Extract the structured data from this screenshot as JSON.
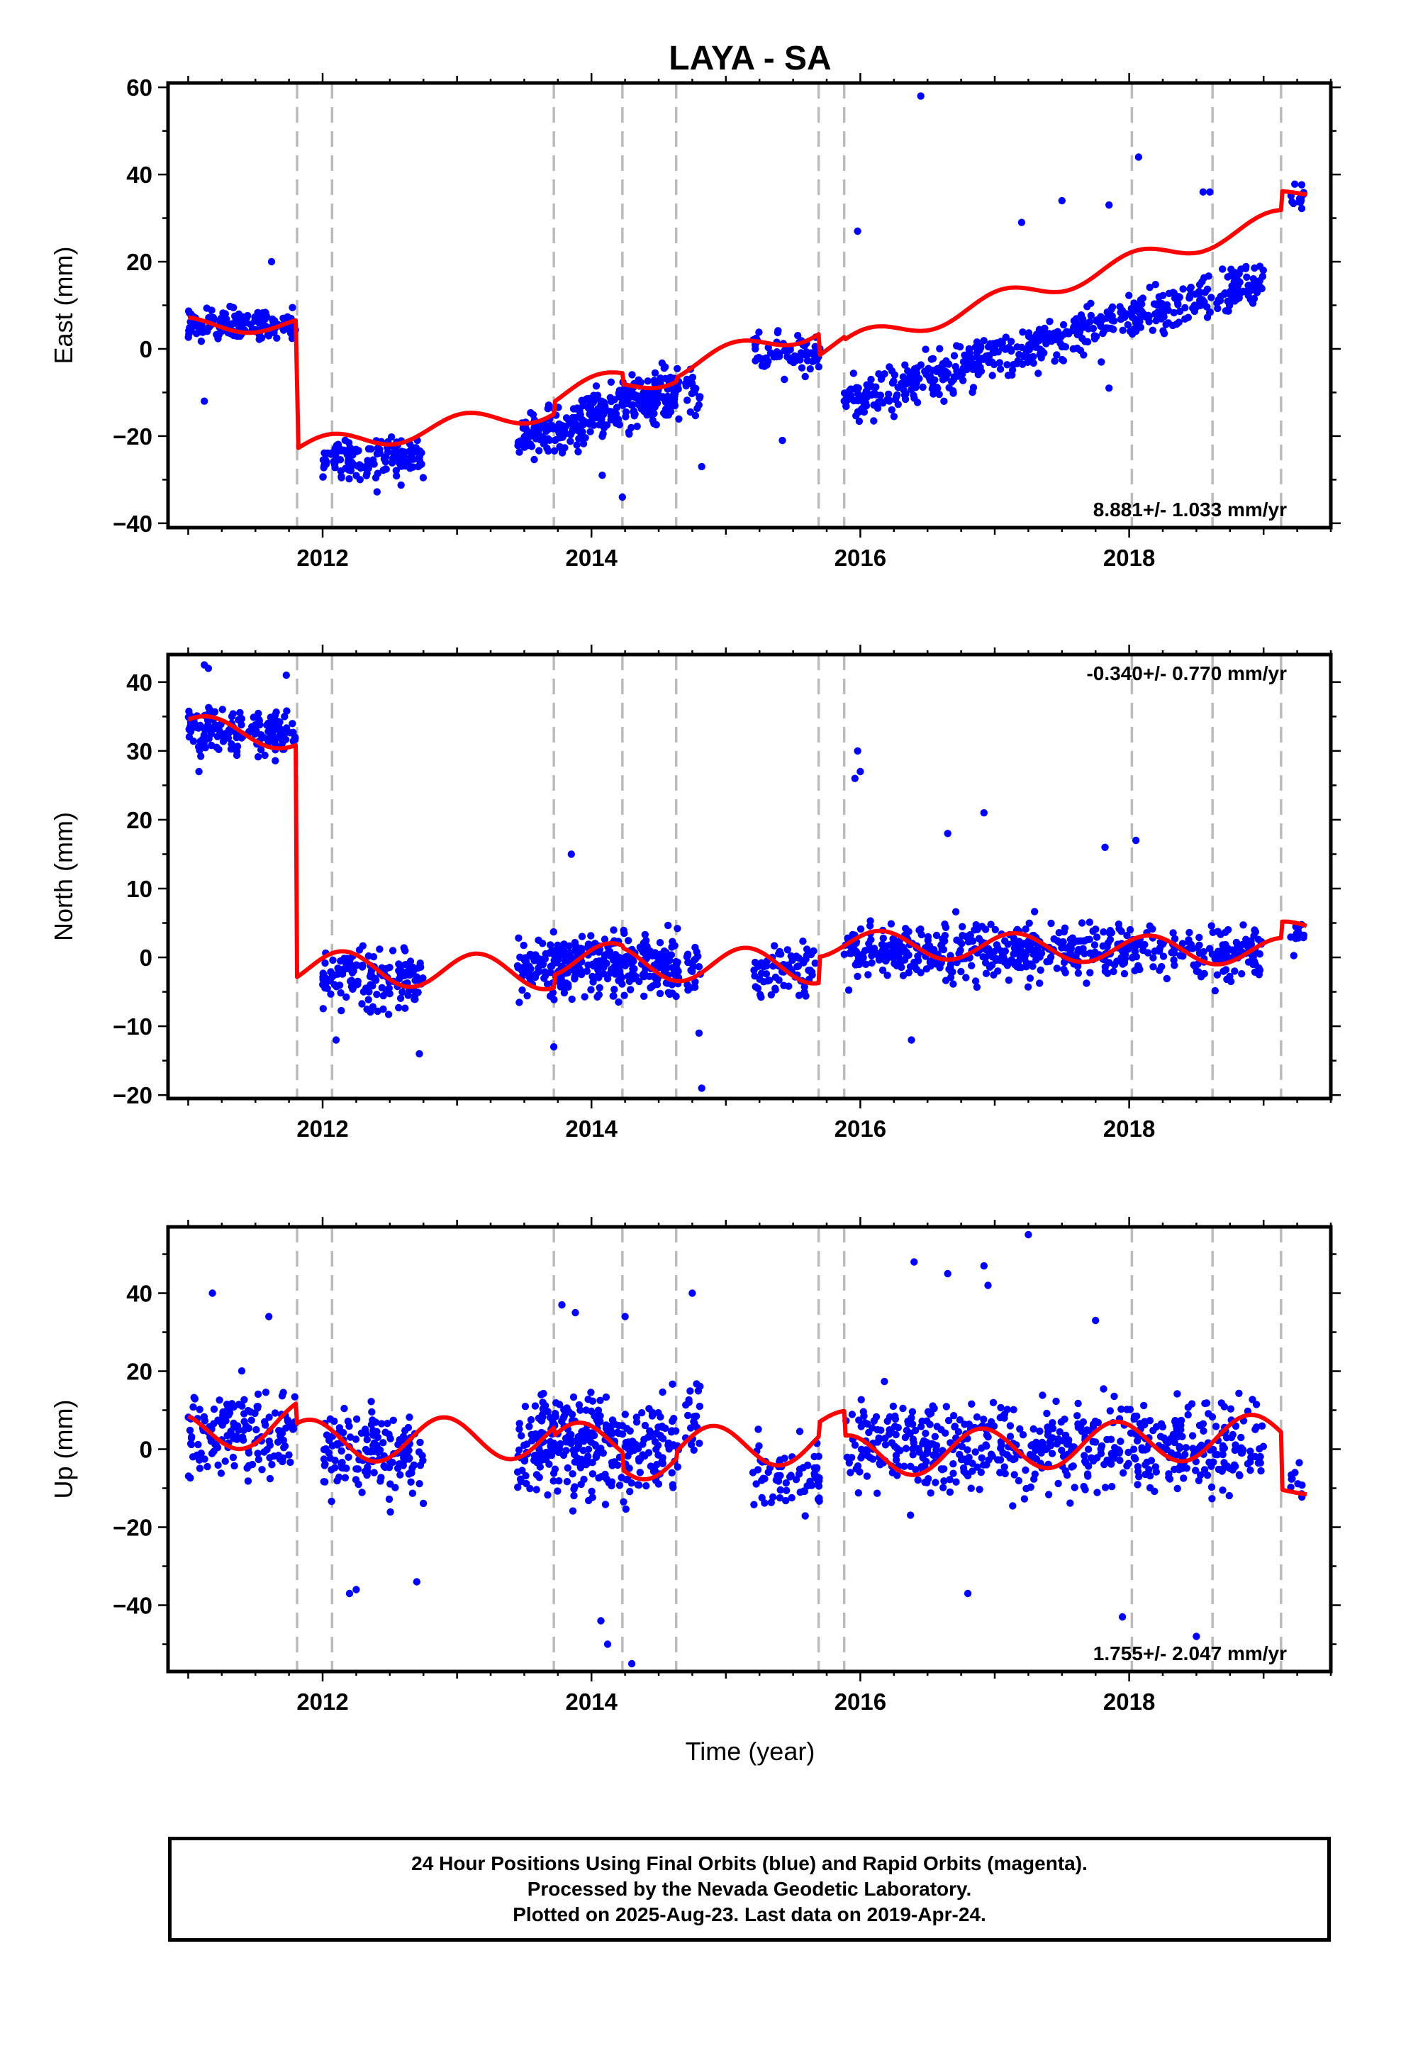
{
  "title": "LAYA - SA",
  "xlabel": "Time (year)",
  "footer": {
    "line1": "24 Hour Positions Using Final Orbits (blue) and Rapid Orbits (magenta).",
    "line2": "Processed by the Nevada Geodetic Laboratory.",
    "line3": "Plotted on 2025-Aug-23. Last data on 2019-Apr-24."
  },
  "colors": {
    "points": "#0000ff",
    "model": "#ff0000",
    "steps": "#bbbbbb"
  },
  "chart_data": [
    {
      "type": "scatter",
      "panel": "east",
      "ylabel": "East (mm)",
      "rate_text": "8.881+/- 1.033 mm/yr",
      "rate_position": "bottom-right",
      "xlim": [
        2010.85,
        2019.5
      ],
      "ylim": [
        -41,
        61
      ],
      "xticks": [
        2012,
        2014,
        2016,
        2018
      ],
      "yticks": [
        -40,
        -20,
        0,
        20,
        40,
        60
      ],
      "grid": false,
      "step_lines": [
        2011.81,
        2012.07,
        2013.72,
        2014.23,
        2014.63,
        2015.69,
        2015.88,
        2018.02,
        2018.62,
        2019.13
      ],
      "segments": [
        {
          "x": [
            2011.0,
            2011.8
          ],
          "offset": 5.5,
          "trend": 0,
          "amp": 1.8,
          "phase": 0.3
        },
        {
          "x": [
            2011.82,
            2013.72
          ],
          "offset": -23,
          "trend": 4.8,
          "amp": 2.3,
          "phase": 0.2
        },
        {
          "x": [
            2013.73,
            2014.23
          ],
          "offset": -11,
          "trend": 8.9,
          "amp": 2.3,
          "phase": 0.2
        },
        {
          "x": [
            2014.24,
            2014.63
          ],
          "offset": -9,
          "trend": 8.9,
          "amp": 2.3,
          "phase": 0.2
        },
        {
          "x": [
            2014.64,
            2015.69
          ],
          "offset": -4.5,
          "trend": 8.9,
          "amp": 2.3,
          "phase": 0.2
        },
        {
          "x": [
            2015.7,
            2015.88
          ],
          "offset": 0,
          "trend": 8.9,
          "amp": 2.3,
          "phase": 0.2
        },
        {
          "x": [
            2015.89,
            2019.13
          ],
          "offset": 1,
          "trend": 8.9,
          "amp": 2.3,
          "phase": 0.2
        },
        {
          "x": [
            2019.14,
            2019.32
          ],
          "offset": 35.5,
          "trend": 0,
          "amp": 0.8,
          "phase": 0.2
        }
      ],
      "point_groups": [
        {
          "x": [
            2011.0,
            2011.8
          ],
          "center": 5.5,
          "spread": 3.2,
          "trend": 0,
          "n": 150
        },
        {
          "x": [
            2012.0,
            2012.75
          ],
          "center": -25,
          "spread": 4.5,
          "trend": 0,
          "n": 150
        },
        {
          "x": [
            2013.45,
            2014.65
          ],
          "center": -15,
          "spread": 5,
          "trend": 8.9,
          "n": 330
        },
        {
          "x": [
            2014.7,
            2014.82
          ],
          "center": -10,
          "spread": 5,
          "trend": 0,
          "n": 20
        },
        {
          "x": [
            2015.2,
            2015.7
          ],
          "center": -1,
          "spread": 4.5,
          "trend": 0,
          "n": 70
        },
        {
          "x": [
            2015.88,
            2019.0
          ],
          "center": 2,
          "spread": 4.5,
          "trend": 8.9,
          "n": 560
        },
        {
          "x": [
            2019.2,
            2019.3
          ],
          "center": 35,
          "spread": 3,
          "trend": 0,
          "n": 15
        }
      ],
      "outliers": [
        {
          "x": 2016.45,
          "y": 58
        },
        {
          "x": 2015.98,
          "y": 27
        },
        {
          "x": 2018.07,
          "y": 44
        },
        {
          "x": 2011.12,
          "y": -12
        },
        {
          "x": 2017.5,
          "y": 34
        },
        {
          "x": 2014.82,
          "y": -27
        },
        {
          "x": 2014.08,
          "y": -29
        },
        {
          "x": 2014.23,
          "y": -34
        },
        {
          "x": 2015.42,
          "y": -21
        },
        {
          "x": 2017.85,
          "y": -9
        },
        {
          "x": 2011.62,
          "y": 20
        },
        {
          "x": 2018.6,
          "y": 36
        },
        {
          "x": 2018.55,
          "y": 36
        },
        {
          "x": 2017.2,
          "y": 29
        },
        {
          "x": 2017.85,
          "y": 33
        }
      ]
    },
    {
      "type": "scatter",
      "panel": "north",
      "ylabel": "North (mm)",
      "rate_text": "-0.340+/- 0.770 mm/yr",
      "rate_position": "top-right",
      "xlim": [
        2010.85,
        2019.5
      ],
      "ylim": [
        -20.5,
        44
      ],
      "xticks": [
        2012,
        2014,
        2016,
        2018
      ],
      "yticks": [
        -20,
        -10,
        0,
        10,
        20,
        30,
        40
      ],
      "grid": false,
      "step_lines": [
        2011.81,
        2012.07,
        2013.72,
        2014.23,
        2014.63,
        2015.69,
        2015.88,
        2018.02,
        2018.62,
        2019.13
      ],
      "segments": [
        {
          "x": [
            2011.0,
            2011.8
          ],
          "offset": 33.5,
          "trend": -2,
          "amp": 1.8,
          "phase": 0.1
        },
        {
          "x": [
            2011.81,
            2013.72
          ],
          "offset": -1.5,
          "trend": -0.34,
          "amp": 2.5,
          "phase": 0.1
        },
        {
          "x": [
            2013.73,
            2014.23
          ],
          "offset": -0.3,
          "trend": -0.34,
          "amp": 2.5,
          "phase": 0.1
        },
        {
          "x": [
            2014.24,
            2015.69
          ],
          "offset": -0.8,
          "trend": -0.34,
          "amp": 2.5,
          "phase": 0.1
        },
        {
          "x": [
            2015.7,
            2019.13
          ],
          "offset": 2,
          "trend": -0.34,
          "amp": 2.0,
          "phase": 0.1
        },
        {
          "x": [
            2019.14,
            2019.32
          ],
          "offset": 4,
          "trend": 0,
          "amp": 1.2,
          "phase": 0.1
        }
      ],
      "point_groups": [
        {
          "x": [
            2011.0,
            2011.8
          ],
          "center": 33,
          "spread": 3,
          "trend": 0,
          "n": 150
        },
        {
          "x": [
            2012.0,
            2012.75
          ],
          "center": -3,
          "spread": 3.8,
          "trend": 0,
          "n": 150
        },
        {
          "x": [
            2013.45,
            2014.65
          ],
          "center": -1,
          "spread": 3.8,
          "trend": 0,
          "n": 330
        },
        {
          "x": [
            2014.7,
            2014.82
          ],
          "center": -2,
          "spread": 3.5,
          "trend": 0,
          "n": 20
        },
        {
          "x": [
            2015.2,
            2015.7
          ],
          "center": -2,
          "spread": 3,
          "trend": 0,
          "n": 70
        },
        {
          "x": [
            2015.88,
            2019.0
          ],
          "center": 1,
          "spread": 3.5,
          "trend": 0,
          "n": 560
        },
        {
          "x": [
            2019.2,
            2019.3
          ],
          "center": 3,
          "spread": 2,
          "trend": 0,
          "n": 12
        }
      ],
      "outliers": [
        {
          "x": 2015.98,
          "y": 30
        },
        {
          "x": 2015.96,
          "y": 26
        },
        {
          "x": 2016.0,
          "y": 27
        },
        {
          "x": 2016.92,
          "y": 21
        },
        {
          "x": 2016.65,
          "y": 18
        },
        {
          "x": 2014.82,
          "y": -19
        },
        {
          "x": 2014.8,
          "y": -11
        },
        {
          "x": 2016.38,
          "y": -12
        },
        {
          "x": 2018.05,
          "y": 17
        },
        {
          "x": 2013.85,
          "y": 15
        },
        {
          "x": 2017.82,
          "y": 16
        },
        {
          "x": 2012.72,
          "y": -14
        },
        {
          "x": 2013.72,
          "y": -13
        },
        {
          "x": 2012.1,
          "y": -12
        },
        {
          "x": 2011.12,
          "y": 42.5
        },
        {
          "x": 2011.15,
          "y": 42
        },
        {
          "x": 2011.73,
          "y": 41
        },
        {
          "x": 2011.08,
          "y": 27
        }
      ]
    },
    {
      "type": "scatter",
      "panel": "up",
      "ylabel": "Up (mm)",
      "rate_text": "1.755+/- 2.047 mm/yr",
      "rate_position": "bottom-right",
      "xlim": [
        2010.85,
        2019.5
      ],
      "ylim": [
        -57,
        57
      ],
      "xticks": [
        2012,
        2014,
        2016,
        2018
      ],
      "yticks": [
        -40,
        -20,
        0,
        20,
        40
      ],
      "grid": false,
      "step_lines": [
        2011.81,
        2012.07,
        2013.72,
        2014.23,
        2014.63,
        2015.69,
        2015.88,
        2018.02,
        2018.62,
        2019.13
      ],
      "segments": [
        {
          "x": [
            2011.0,
            2011.8
          ],
          "offset": 4,
          "trend": 4,
          "amp": 5.5,
          "phase": 0.35
        },
        {
          "x": [
            2011.81,
            2013.72
          ],
          "offset": 2,
          "trend": 0.6,
          "amp": 5.5,
          "phase": 0.35
        },
        {
          "x": [
            2013.73,
            2014.23
          ],
          "offset": 1,
          "trend": 1.76,
          "amp": 5.5,
          "phase": 0.35
        },
        {
          "x": [
            2014.24,
            2014.63
          ],
          "offset": -2.5,
          "trend": 1.76,
          "amp": 5.5,
          "phase": 0.35
        },
        {
          "x": [
            2014.64,
            2015.69
          ],
          "offset": 0,
          "trend": 1.76,
          "amp": 5.5,
          "phase": 0.35
        },
        {
          "x": [
            2015.7,
            2015.88
          ],
          "offset": 6,
          "trend": 1.76,
          "amp": 3.5,
          "phase": 0.35
        },
        {
          "x": [
            2015.89,
            2019.13
          ],
          "offset": -2,
          "trend": 1.76,
          "amp": 5.5,
          "phase": 0.35
        },
        {
          "x": [
            2019.14,
            2019.32
          ],
          "offset": -10.5,
          "trend": 0,
          "amp": 1.2,
          "phase": 0.35
        }
      ],
      "point_groups": [
        {
          "x": [
            2011.0,
            2011.8
          ],
          "center": 4,
          "spread": 9,
          "trend": 0,
          "n": 150
        },
        {
          "x": [
            2012.0,
            2012.75
          ],
          "center": -1,
          "spread": 10,
          "trend": 0,
          "n": 150
        },
        {
          "x": [
            2013.45,
            2014.65
          ],
          "center": 1,
          "spread": 11,
          "trend": 0,
          "n": 330
        },
        {
          "x": [
            2014.7,
            2014.82
          ],
          "center": 10,
          "spread": 10,
          "trend": 0,
          "n": 20
        },
        {
          "x": [
            2015.2,
            2015.7
          ],
          "center": -7,
          "spread": 8,
          "trend": 0,
          "n": 70
        },
        {
          "x": [
            2015.88,
            2019.0
          ],
          "center": 1,
          "spread": 10,
          "trend": 0,
          "n": 560
        },
        {
          "x": [
            2019.2,
            2019.3
          ],
          "center": -10,
          "spread": 5,
          "trend": 0,
          "n": 10
        }
      ],
      "outliers": [
        {
          "x": 2017.25,
          "y": 55
        },
        {
          "x": 2016.4,
          "y": 48
        },
        {
          "x": 2016.92,
          "y": 47
        },
        {
          "x": 2016.65,
          "y": 45
        },
        {
          "x": 2016.95,
          "y": 42
        },
        {
          "x": 2014.07,
          "y": -44
        },
        {
          "x": 2014.12,
          "y": -50
        },
        {
          "x": 2014.3,
          "y": -55
        },
        {
          "x": 2011.18,
          "y": 40
        },
        {
          "x": 2014.75,
          "y": 40
        },
        {
          "x": 2018.5,
          "y": -48
        },
        {
          "x": 2017.95,
          "y": -43
        },
        {
          "x": 2012.2,
          "y": -37
        },
        {
          "x": 2012.25,
          "y": -36
        },
        {
          "x": 2013.78,
          "y": 37
        },
        {
          "x": 2013.88,
          "y": 35
        },
        {
          "x": 2014.25,
          "y": 34
        },
        {
          "x": 2011.6,
          "y": 34
        },
        {
          "x": 2017.75,
          "y": 33
        },
        {
          "x": 2012.7,
          "y": -34
        },
        {
          "x": 2016.8,
          "y": -37
        }
      ]
    }
  ]
}
